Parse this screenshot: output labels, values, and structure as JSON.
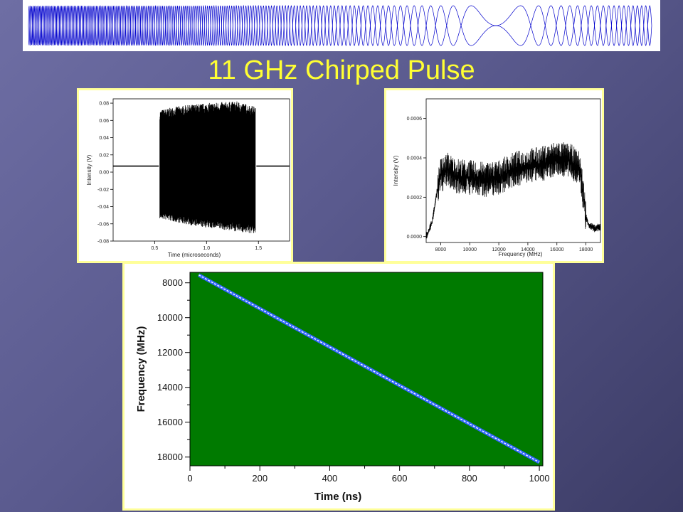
{
  "slide": {
    "title": "11 GHz Chirped Pulse"
  },
  "colors": {
    "background": "#5a5a8e",
    "title": "#ffff33",
    "panel_border": "#ffff99",
    "banner_waveform": "#0000cc",
    "spectrogram_fill": "#007a00",
    "chirp_line": "#3366ff",
    "chirp_fit": "#ffffff"
  },
  "banner": {
    "icon": "chirped-waveform-banner"
  },
  "chart_data": [
    {
      "type": "line",
      "xlabel": "Time (microseconds)",
      "ylabel": "Intensity (V)",
      "xlim": [
        0.1,
        1.8
      ],
      "ylim": [
        -0.08,
        0.085
      ],
      "x_ticks": [
        "0.5",
        "1.0",
        "1.5"
      ],
      "y_ticks": [
        "0.08",
        "0.06",
        "0.04",
        "0.02",
        "0.00",
        "-0.02",
        "-0.04",
        "-0.06",
        "-0.08"
      ],
      "series": [
        {
          "x": [
            0.1,
            0.54,
            0.55,
            0.7,
            0.9,
            1.1,
            1.3,
            1.47,
            1.48,
            1.8
          ],
          "y_max": [
            0.008,
            0.008,
            0.072,
            0.076,
            0.079,
            0.081,
            0.082,
            0.076,
            0.008,
            0.008
          ],
          "y_min": [
            0.006,
            0.006,
            -0.054,
            -0.058,
            -0.063,
            -0.066,
            -0.069,
            -0.072,
            0.006,
            0.006
          ]
        }
      ],
      "grid": false
    },
    {
      "type": "line",
      "xlabel": "Frequency (MHz)",
      "ylabel": "Intensity (V)",
      "xlim": [
        7000,
        19000
      ],
      "ylim": [
        -3e-05,
        0.0007
      ],
      "x_ticks": [
        "8000",
        "10000",
        "12000",
        "14000",
        "16000",
        "18000"
      ],
      "y_ticks": [
        "0.0006",
        "0.0004",
        "0.0002",
        "0.0000"
      ],
      "series": [
        {
          "x": [
            7000,
            7400,
            7800,
            8000,
            8500,
            9000,
            10000,
            11000,
            12000,
            13000,
            14000,
            15000,
            16000,
            17000,
            17600,
            18000,
            18200,
            18600,
            19000
          ],
          "y": [
            0.0,
            7e-05,
            0.00025,
            0.00031,
            0.00034,
            0.00031,
            0.0003,
            0.00029,
            0.0003,
            0.00034,
            0.00036,
            0.00037,
            0.0004,
            0.00038,
            0.00034,
            0.0001,
            6e-05,
            4e-05,
            5e-05
          ]
        }
      ],
      "grid": false
    },
    {
      "type": "heatmap",
      "xlabel": "Time (ns)",
      "ylabel": "Frequency (MHz)",
      "xlim": [
        0,
        1010
      ],
      "ylim": [
        7400,
        18500
      ],
      "y_reversed": true,
      "x_ticks": [
        "0",
        "200",
        "400",
        "600",
        "800",
        "1000"
      ],
      "y_ticks": [
        "8000",
        "10000",
        "12000",
        "14000",
        "16000",
        "18000"
      ],
      "series": [
        {
          "x": [
            25,
            1000
          ],
          "y": [
            7550,
            18300
          ]
        }
      ],
      "grid": false
    }
  ]
}
